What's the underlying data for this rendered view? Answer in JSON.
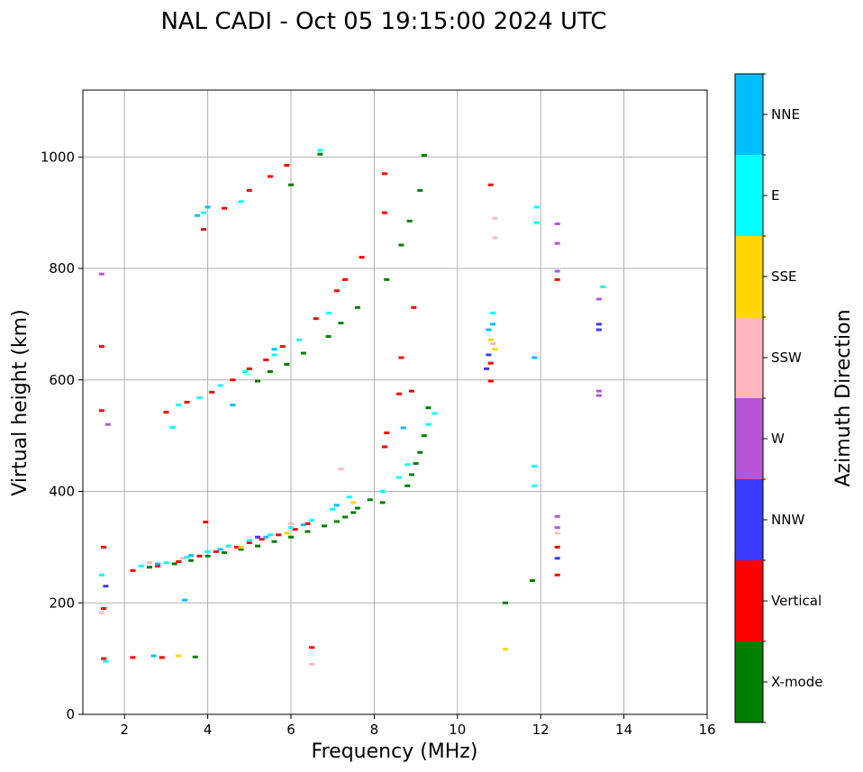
{
  "chart_data": {
    "type": "scatter",
    "title": "NAL CADI - Oct 05 19:15:00 2024 UTC",
    "xlabel": "Frequency (MHz)",
    "ylabel": "Virtual height (km)",
    "xlim": [
      1,
      16
    ],
    "ylim": [
      0,
      1120
    ],
    "xticks": [
      2,
      4,
      6,
      8,
      10,
      12,
      14,
      16
    ],
    "yticks": [
      0,
      200,
      400,
      600,
      800,
      1000
    ],
    "grid": true,
    "colorbar": {
      "label": "Azimuth Direction",
      "categories": [
        "X-mode",
        "Vertical",
        "NNW",
        "W",
        "SSW",
        "SSE",
        "E",
        "NNE"
      ],
      "colors": [
        "#008000",
        "#ff0000",
        "#3a3aff",
        "#b556d6",
        "#ffb6c1",
        "#ffd700",
        "#00ffff",
        "#00bfff"
      ]
    },
    "series": [
      {
        "name": "X-mode",
        "points": [
          [
            2.6,
            264
          ],
          [
            3.2,
            270
          ],
          [
            3.6,
            276
          ],
          [
            4.0,
            284
          ],
          [
            4.4,
            290
          ],
          [
            4.8,
            296
          ],
          [
            5.2,
            302
          ],
          [
            5.6,
            310
          ],
          [
            6.0,
            318
          ],
          [
            6.4,
            328
          ],
          [
            6.8,
            338
          ],
          [
            7.1,
            346
          ],
          [
            7.3,
            354
          ],
          [
            7.5,
            362
          ],
          [
            7.6,
            370
          ],
          [
            7.9,
            385
          ],
          [
            8.2,
            380
          ],
          [
            8.8,
            410
          ],
          [
            8.9,
            430
          ],
          [
            9.0,
            450
          ],
          [
            9.1,
            470
          ],
          [
            9.2,
            500
          ],
          [
            9.3,
            550
          ],
          [
            3.7,
            103
          ],
          [
            5.2,
            598
          ],
          [
            5.5,
            615
          ],
          [
            5.9,
            628
          ],
          [
            6.3,
            648
          ],
          [
            6.9,
            678
          ],
          [
            7.2,
            702
          ],
          [
            7.6,
            730
          ],
          [
            8.3,
            780
          ],
          [
            8.65,
            842
          ],
          [
            8.85,
            885
          ],
          [
            9.1,
            940
          ],
          [
            9.2,
            1003
          ],
          [
            6.7,
            1005
          ],
          [
            11.15,
            200
          ],
          [
            11.8,
            240
          ],
          [
            6.0,
            950
          ]
        ]
      },
      {
        "name": "Vertical",
        "points": [
          [
            2.2,
            258
          ],
          [
            2.8,
            266
          ],
          [
            3.3,
            274
          ],
          [
            3.8,
            284
          ],
          [
            4.2,
            292
          ],
          [
            4.7,
            300
          ],
          [
            5.0,
            308
          ],
          [
            5.3,
            314
          ],
          [
            5.7,
            322
          ],
          [
            6.1,
            332
          ],
          [
            6.4,
            342
          ],
          [
            3.95,
            345
          ],
          [
            1.5,
            300
          ],
          [
            1.5,
            190
          ],
          [
            1.5,
            100
          ],
          [
            2.2,
            102
          ],
          [
            2.9,
            102
          ],
          [
            3.0,
            542
          ],
          [
            3.5,
            560
          ],
          [
            4.1,
            578
          ],
          [
            4.6,
            600
          ],
          [
            5.0,
            620
          ],
          [
            5.4,
            636
          ],
          [
            5.8,
            660
          ],
          [
            6.6,
            710
          ],
          [
            7.1,
            760
          ],
          [
            7.3,
            780
          ],
          [
            7.7,
            820
          ],
          [
            8.25,
            480
          ],
          [
            8.3,
            505
          ],
          [
            8.6,
            575
          ],
          [
            8.65,
            640
          ],
          [
            8.9,
            580
          ],
          [
            8.95,
            730
          ],
          [
            8.25,
            900
          ],
          [
            8.25,
            970
          ],
          [
            3.9,
            870
          ],
          [
            4.4,
            908
          ],
          [
            5.0,
            940
          ],
          [
            5.5,
            965
          ],
          [
            5.9,
            985
          ],
          [
            6.5,
            120
          ],
          [
            10.8,
            598
          ],
          [
            10.8,
            630
          ],
          [
            12.4,
            250
          ],
          [
            12.4,
            300
          ],
          [
            12.4,
            780
          ],
          [
            10.8,
            950
          ],
          [
            1.45,
            660
          ],
          [
            1.45,
            545
          ]
        ]
      },
      {
        "name": "NNW",
        "points": [
          [
            10.7,
            620
          ],
          [
            10.75,
            645
          ],
          [
            13.4,
            690
          ],
          [
            13.4,
            700
          ],
          [
            12.4,
            280
          ],
          [
            1.55,
            230
          ],
          [
            5.2,
            318
          ]
        ]
      },
      {
        "name": "W",
        "points": [
          [
            13.4,
            580
          ],
          [
            13.4,
            745
          ],
          [
            12.4,
            355
          ],
          [
            12.4,
            335
          ],
          [
            12.4,
            845
          ],
          [
            12.4,
            880
          ],
          [
            12.4,
            795
          ],
          [
            1.45,
            790
          ],
          [
            1.6,
            520
          ],
          [
            13.4,
            572
          ]
        ]
      },
      {
        "name": "SSW",
        "points": [
          [
            6.5,
            90
          ],
          [
            10.9,
            855
          ],
          [
            10.9,
            890
          ],
          [
            2.6,
            272
          ],
          [
            3.4,
            280
          ],
          [
            6.0,
            342
          ],
          [
            7.2,
            440
          ],
          [
            1.45,
            182
          ],
          [
            10.85,
            665
          ],
          [
            12.4,
            325
          ]
        ]
      },
      {
        "name": "SSE",
        "points": [
          [
            11.15,
            117
          ],
          [
            3.3,
            105
          ],
          [
            7.5,
            380
          ],
          [
            10.9,
            655
          ],
          [
            10.8,
            672
          ],
          [
            4.8,
            300
          ],
          [
            5.9,
            325
          ]
        ]
      },
      {
        "name": "E",
        "points": [
          [
            2.4,
            266
          ],
          [
            3.0,
            272
          ],
          [
            3.5,
            282
          ],
          [
            4.0,
            292
          ],
          [
            4.5,
            302
          ],
          [
            5.0,
            312
          ],
          [
            5.5,
            322
          ],
          [
            6.0,
            335
          ],
          [
            6.5,
            348
          ],
          [
            7.0,
            368
          ],
          [
            7.4,
            390
          ],
          [
            8.2,
            400
          ],
          [
            8.6,
            425
          ],
          [
            8.8,
            448
          ],
          [
            9.3,
            520
          ],
          [
            9.45,
            540
          ],
          [
            3.3,
            555
          ],
          [
            3.8,
            568
          ],
          [
            4.3,
            590
          ],
          [
            4.9,
            615
          ],
          [
            5.6,
            645
          ],
          [
            6.2,
            672
          ],
          [
            6.9,
            720
          ],
          [
            3.9,
            900
          ],
          [
            4.8,
            920
          ],
          [
            6.7,
            1012
          ],
          [
            11.85,
            445
          ],
          [
            11.85,
            410
          ],
          [
            11.9,
            910
          ],
          [
            11.9,
            882
          ],
          [
            13.5,
            767
          ],
          [
            3.15,
            515
          ],
          [
            1.55,
            95
          ],
          [
            10.85,
            720
          ],
          [
            1.45,
            250
          ]
        ]
      },
      {
        "name": "NNE",
        "points": [
          [
            2.8,
            270
          ],
          [
            3.6,
            285
          ],
          [
            4.3,
            296
          ],
          [
            5.4,
            318
          ],
          [
            6.3,
            340
          ],
          [
            7.1,
            375
          ],
          [
            10.75,
            690
          ],
          [
            10.85,
            700
          ],
          [
            4.0,
            910
          ],
          [
            3.75,
            895
          ],
          [
            3.45,
            205
          ],
          [
            2.7,
            105
          ],
          [
            4.6,
            555
          ],
          [
            5.6,
            655
          ],
          [
            8.7,
            514
          ],
          [
            11.85,
            640
          ]
        ]
      }
    ]
  }
}
